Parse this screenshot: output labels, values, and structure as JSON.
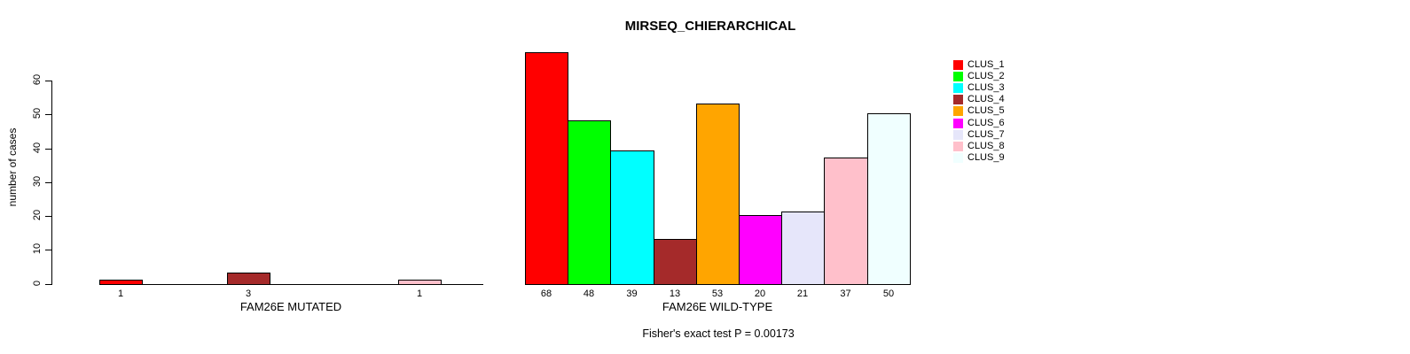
{
  "chart_data": {
    "type": "bar",
    "title": "MIRSEQ_CHIERARCHICAL",
    "ylabel": "number of cases",
    "annotation": "Fisher's exact test P = 0.00173",
    "ylim": [
      0,
      68
    ],
    "yticks": [
      0,
      10,
      20,
      30,
      40,
      50,
      60
    ],
    "grid": false,
    "legend_position": "right",
    "legend": [
      "CLUS_1",
      "CLUS_2",
      "CLUS_3",
      "CLUS_4",
      "CLUS_5",
      "CLUS_6",
      "CLUS_7",
      "CLUS_8",
      "CLUS_9"
    ],
    "cluster_colors": [
      "#FF0000",
      "#00FF00",
      "#00FFFF",
      "#A52A2A",
      "#FFA500",
      "#FF00FF",
      "#E6E6FA",
      "#FFC0CB",
      "#F0FFFF"
    ],
    "bar_border_color": "#000000",
    "panels": [
      {
        "xlabel": "FAM26E MUTATED",
        "values": [
          1,
          0,
          0,
          3,
          0,
          0,
          0,
          1,
          0
        ]
      },
      {
        "xlabel": "FAM26E WILD-TYPE",
        "values": [
          68,
          48,
          39,
          13,
          53,
          20,
          21,
          37,
          50
        ]
      }
    ]
  }
}
